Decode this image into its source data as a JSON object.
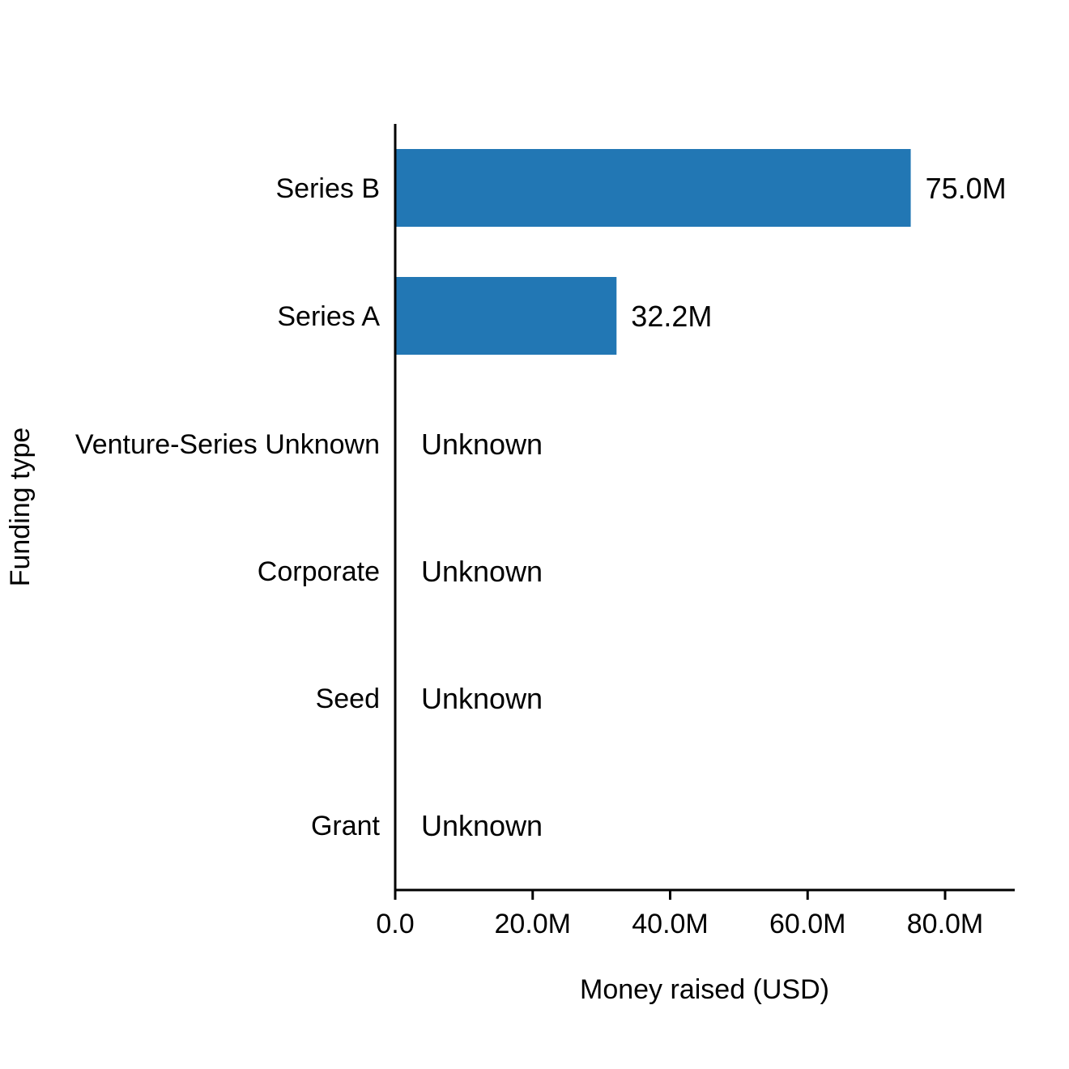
{
  "chart_data": {
    "type": "bar",
    "orientation": "horizontal",
    "title": "",
    "xlabel": "Money raised (USD)",
    "ylabel": "Funding type",
    "xlim": [
      0,
      90000000
    ],
    "categories": [
      "Series B",
      "Series A",
      "Venture-Series Unknown",
      "Corporate",
      "Seed",
      "Grant"
    ],
    "values": [
      75000000,
      32200000,
      null,
      null,
      null,
      null
    ],
    "value_labels": [
      "75.0M",
      "32.2M",
      "Unknown",
      "Unknown",
      "Unknown",
      "Unknown"
    ],
    "x_ticks": [
      {
        "value": 0,
        "label": "0.0"
      },
      {
        "value": 20000000,
        "label": "20.0M"
      },
      {
        "value": 40000000,
        "label": "40.0M"
      },
      {
        "value": 60000000,
        "label": "60.0M"
      },
      {
        "value": 80000000,
        "label": "80.0M"
      }
    ],
    "bar_color": "#2277b4",
    "grid": false,
    "legend": "none"
  }
}
